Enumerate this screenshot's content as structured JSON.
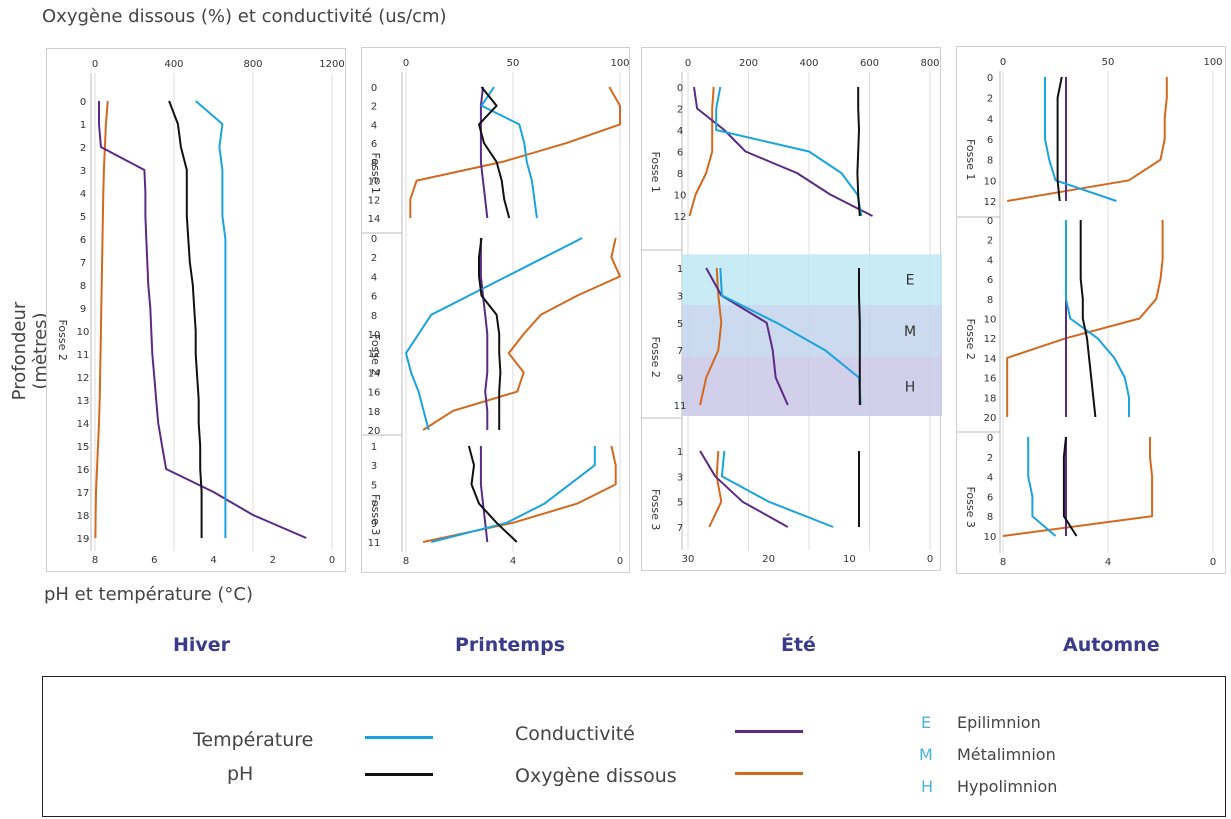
{
  "top_axis_title": "Oxygène dissous (%) et conductivité (us/cm)",
  "bottom_axis_title": "pH et température (°C)",
  "y_axis_title": "Profondeur (mètres)",
  "seasons": [
    "Hiver",
    "Printemps",
    "Été",
    "Automne"
  ],
  "legend": {
    "temperature": "Température",
    "ph": "pH",
    "conductivity": "Conductivité",
    "oxygen": "Oxygène dissous",
    "zones": [
      {
        "letter": "E",
        "name": "Epilimnion"
      },
      {
        "letter": "M",
        "name": "Métalimnion"
      },
      {
        "letter": "H",
        "name": "Hypolimnion"
      }
    ]
  },
  "colors": {
    "temperature": "#1aa3dd",
    "ph": "#111111",
    "conductivity": "#5b2a86",
    "oxygen": "#d2691e",
    "epilimnion": "#bfe8f5",
    "metalimnion": "#c3d3ec",
    "hypolimnion": "#c9c7e6"
  },
  "chart_data": [
    {
      "type": "line",
      "season": "Hiver",
      "top_axis": {
        "ticks": [
          "0",
          "400",
          "800",
          "1200"
        ],
        "range": [
          0,
          1200
        ]
      },
      "bottom_axis": {
        "ticks": [
          "8",
          "6",
          "4",
          "2",
          "0"
        ],
        "range": [
          8,
          0
        ]
      },
      "sections": [
        {
          "label": "Fosse 2",
          "depths": [
            "0",
            "1",
            "2",
            "3",
            "4",
            "5",
            "6",
            "7",
            "8",
            "9",
            "10",
            "11",
            "12",
            "13",
            "14",
            "15",
            "16",
            "17",
            "18",
            "19"
          ],
          "ph": [
            5.5,
            5.2,
            5.1,
            4.9,
            4.9,
            4.9,
            4.85,
            4.8,
            4.7,
            4.65,
            4.6,
            4.6,
            4.55,
            4.5,
            4.5,
            4.45,
            4.45,
            4.4,
            4.4,
            4.4
          ],
          "temperature": [
            4.6,
            3.7,
            3.8,
            3.7,
            3.7,
            3.7,
            3.6,
            3.6,
            3.6,
            3.6,
            3.6,
            3.6,
            3.6,
            3.6,
            3.6,
            3.6,
            3.6,
            3.6,
            3.6,
            3.6
          ],
          "conductivity": [
            20,
            20,
            30,
            250,
            255,
            255,
            260,
            265,
            270,
            280,
            285,
            290,
            300,
            310,
            320,
            340,
            360,
            600,
            800,
            1070
          ],
          "oxygen": [
            65,
            55,
            50,
            45,
            42,
            40,
            38,
            36,
            34,
            32,
            30,
            28,
            26,
            24,
            20,
            15,
            10,
            5,
            3,
            2
          ]
        }
      ]
    },
    {
      "type": "line",
      "season": "Printemps",
      "top_axis": {
        "ticks": [
          "0",
          "50",
          "100"
        ],
        "range": [
          0,
          100
        ]
      },
      "bottom_axis": {
        "ticks": [
          "8",
          "4",
          "0"
        ],
        "range": [
          8.5,
          0
        ]
      },
      "sections": [
        {
          "label": "Fosse 1",
          "depths": [
            "0",
            "2",
            "4",
            "6",
            "8",
            "10",
            "12",
            "14"
          ],
          "ph": [
            5.5,
            4.9,
            5.6,
            5.4,
            4.9,
            4.7,
            4.6,
            4.4
          ],
          "temperature": [
            5.0,
            5.5,
            4.0,
            3.8,
            3.7,
            3.5,
            3.4,
            3.3
          ],
          "conductivity": [
            36,
            35,
            35,
            35,
            35,
            36,
            37,
            38
          ],
          "oxygen": [
            95,
            100,
            100,
            75,
            45,
            5,
            2,
            2
          ]
        },
        {
          "label": "Fosse 2",
          "depths": [
            "0",
            "2",
            "4",
            "6",
            "8",
            "10",
            "12",
            "14",
            "16",
            "18",
            "20"
          ],
          "ph": [
            5.5,
            5.6,
            5.6,
            5.5,
            4.9,
            4.8,
            4.8,
            4.75,
            4.8,
            4.8,
            4.8
          ],
          "temperature": [
            1.5,
            3.0,
            4.5,
            6.0,
            7.5,
            8.0,
            8.5,
            8.3,
            8.0,
            7.8,
            7.6
          ],
          "conductivity": [
            35,
            35,
            35,
            36,
            37,
            38,
            38,
            38,
            37,
            38,
            38
          ],
          "oxygen": [
            98,
            96,
            100,
            80,
            63,
            55,
            48,
            55,
            52,
            22,
            8
          ]
        },
        {
          "label": "Fosse 3",
          "depths": [
            "1",
            "3",
            "5",
            "7",
            "9",
            "11"
          ],
          "ph": [
            6.0,
            5.8,
            5.9,
            5.6,
            4.9,
            4.1
          ],
          "temperature": [
            1.0,
            1.0,
            2.0,
            3.0,
            4.5,
            7.5
          ],
          "conductivity": [
            35,
            35,
            35,
            36,
            37,
            38
          ],
          "oxygen": [
            96,
            98,
            98,
            80,
            50,
            8
          ]
        }
      ]
    },
    {
      "type": "line",
      "season": "Été",
      "top_axis": {
        "ticks": [
          "0",
          "200",
          "400",
          "600",
          "800"
        ],
        "range": [
          0,
          800
        ]
      },
      "bottom_axis": {
        "ticks": [
          "30",
          "20",
          "10",
          "0"
        ],
        "range": [
          30,
          0
        ]
      },
      "sections": [
        {
          "label": "Fosse 1",
          "depths": [
            "0",
            "2",
            "4",
            "6",
            "8",
            "10",
            "12"
          ],
          "ph": [
            8.9,
            8.9,
            8.8,
            8.9,
            9.0,
            8.9,
            8.7
          ],
          "temperature": [
            26.0,
            26.5,
            26.5,
            15.0,
            11.0,
            9.0,
            8.5
          ],
          "conductivity": [
            20,
            30,
            120,
            190,
            360,
            470,
            610
          ],
          "oxygen": [
            85,
            80,
            80,
            80,
            60,
            25,
            5
          ]
        },
        {
          "label": "Fosse 2",
          "depths": [
            "1",
            "3",
            "5",
            "7",
            "9",
            "11"
          ],
          "ph": [
            8.8,
            8.8,
            8.7,
            8.7,
            8.7,
            8.7
          ],
          "temperature": [
            26.0,
            25.8,
            19.0,
            13.0,
            8.8,
            8.6
          ],
          "conductivity": [
            60,
            110,
            260,
            280,
            290,
            330
          ],
          "oxygen": [
            95,
            100,
            110,
            100,
            60,
            40
          ]
        },
        {
          "label": "Fosse 3",
          "depths": [
            "1",
            "3",
            "5",
            "7"
          ],
          "ph": [
            8.8,
            8.8,
            8.8,
            8.8
          ],
          "temperature": [
            25.5,
            25.8,
            20.0,
            12.0
          ],
          "conductivity": [
            40,
            90,
            180,
            330
          ],
          "oxygen": [
            100,
            95,
            110,
            70
          ]
        }
      ]
    },
    {
      "type": "line",
      "season": "Automne",
      "top_axis": {
        "ticks": [
          "0",
          "50",
          "100"
        ],
        "range": [
          0,
          100
        ]
      },
      "bottom_axis": {
        "ticks": [
          "8",
          "4",
          "0"
        ],
        "range": [
          10,
          0
        ]
      },
      "sections": [
        {
          "label": "Fosse 1",
          "depths": [
            "0",
            "2",
            "4",
            "6",
            "8",
            "10",
            "12"
          ],
          "ph": [
            7.2,
            7.4,
            7.4,
            7.4,
            7.4,
            7.4,
            7.3
          ],
          "temperature": [
            8.0,
            8.0,
            8.0,
            8.0,
            7.8,
            7.5,
            4.6
          ],
          "conductivity": [
            30,
            30,
            30,
            30,
            30,
            30,
            30
          ],
          "oxygen": [
            78,
            78,
            77,
            77,
            75,
            60,
            2
          ]
        },
        {
          "label": "Fosse 2",
          "depths": [
            "0",
            "2",
            "4",
            "6",
            "8",
            "10",
            "12",
            "14",
            "16",
            "18",
            "20"
          ],
          "ph": [
            6.3,
            6.3,
            6.3,
            6.3,
            6.2,
            6.2,
            6.0,
            5.9,
            5.8,
            5.7,
            5.6
          ],
          "temperature": [
            7.0,
            7.0,
            7.0,
            7.0,
            7.0,
            6.8,
            5.5,
            4.7,
            4.2,
            4.0,
            4.0
          ],
          "conductivity": [
            30,
            30,
            30,
            30,
            30,
            30,
            30,
            30,
            30,
            30,
            30
          ],
          "oxygen": [
            76,
            76,
            76,
            75,
            73,
            65,
            30,
            2,
            2,
            2,
            2
          ]
        },
        {
          "label": "Fosse 3",
          "depths": [
            "0",
            "2",
            "4",
            "6",
            "8",
            "10"
          ],
          "ph": [
            7.0,
            7.1,
            7.1,
            7.1,
            7.1,
            6.5
          ],
          "temperature": [
            8.8,
            8.8,
            8.8,
            8.6,
            8.6,
            7.5
          ],
          "conductivity": [
            30,
            30,
            30,
            30,
            30,
            30
          ],
          "oxygen": [
            70,
            70,
            71,
            71,
            71,
            0
          ]
        }
      ]
    }
  ]
}
